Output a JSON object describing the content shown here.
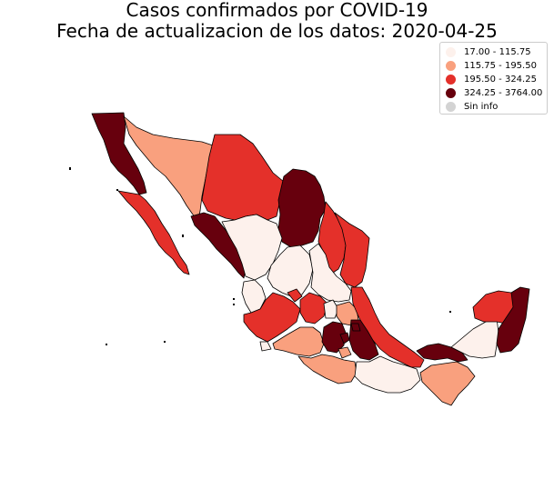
{
  "title": {
    "line1": "Casos confirmados por COVID-19",
    "line2": "Fecha de actualizacion de los datos: 2020-04-25"
  },
  "legend": {
    "items": [
      {
        "label": "17.00 - 115.75",
        "color": "#fdf1ec"
      },
      {
        "label": "115.75 - 195.50",
        "color": "#f9a07e"
      },
      {
        "label": "195.50 - 324.25",
        "color": "#e4302a"
      },
      {
        "label": "324.25 - 3764.00",
        "color": "#67000d"
      },
      {
        "label": "Sin info",
        "color": "#d3d3d3"
      }
    ]
  },
  "map_data": {
    "type": "choropleth",
    "region": "Mexico",
    "metric": "Casos confirmados",
    "states": [
      {
        "name": "Baja California",
        "class": 3
      },
      {
        "name": "Baja California Sur",
        "class": 2
      },
      {
        "name": "Sonora",
        "class": 1
      },
      {
        "name": "Chihuahua",
        "class": 2
      },
      {
        "name": "Coahuila",
        "class": 3
      },
      {
        "name": "Nuevo León",
        "class": 2
      },
      {
        "name": "Tamaulipas",
        "class": 2
      },
      {
        "name": "Sinaloa",
        "class": 3
      },
      {
        "name": "Durango",
        "class": 0
      },
      {
        "name": "Zacatecas",
        "class": 0
      },
      {
        "name": "San Luis Potosí",
        "class": 0
      },
      {
        "name": "Nayarit",
        "class": 0
      },
      {
        "name": "Aguascalientes",
        "class": 2
      },
      {
        "name": "Jalisco",
        "class": 2
      },
      {
        "name": "Guanajuato",
        "class": 2
      },
      {
        "name": "Querétaro",
        "class": 0
      },
      {
        "name": "Hidalgo",
        "class": 1
      },
      {
        "name": "Veracruz",
        "class": 2
      },
      {
        "name": "Colima",
        "class": 0
      },
      {
        "name": "Michoacán",
        "class": 1
      },
      {
        "name": "México",
        "class": 3
      },
      {
        "name": "Ciudad de México",
        "class": 3
      },
      {
        "name": "Morelos",
        "class": 1
      },
      {
        "name": "Puebla",
        "class": 3
      },
      {
        "name": "Tlaxcala",
        "class": 3
      },
      {
        "name": "Guerrero",
        "class": 1
      },
      {
        "name": "Oaxaca",
        "class": 0
      },
      {
        "name": "Tabasco",
        "class": 3
      },
      {
        "name": "Chiapas",
        "class": 1
      },
      {
        "name": "Campeche",
        "class": 0
      },
      {
        "name": "Yucatán",
        "class": 2
      },
      {
        "name": "Quintana Roo",
        "class": 3
      }
    ]
  }
}
